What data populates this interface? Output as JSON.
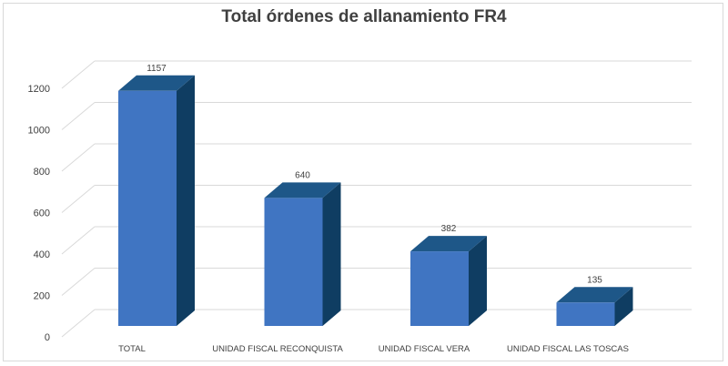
{
  "chart_data": {
    "type": "bar",
    "title": "Total órdenes de allanamiento FR4",
    "categories": [
      "TOTAL",
      "UNIDAD FISCAL RECONQUISTA",
      "UNIDAD FISCAL VERA",
      "UNIDAD FISCAL LAS TOSCAS"
    ],
    "values": [
      1157,
      640,
      382,
      135
    ],
    "data_labels": [
      "1157",
      "640",
      "382",
      "135"
    ],
    "ylim": [
      0,
      1200
    ],
    "yticks": [
      "0",
      "200",
      "400",
      "600",
      "800",
      "1000",
      "1200"
    ],
    "xlabel": "",
    "ylabel": "",
    "grid": true,
    "legend": "none",
    "style": "3d-column",
    "colors": {
      "front": "#4075c2",
      "side": "#0f3d62",
      "top": "#1e5788",
      "grid": "#d9d9d9"
    }
  }
}
